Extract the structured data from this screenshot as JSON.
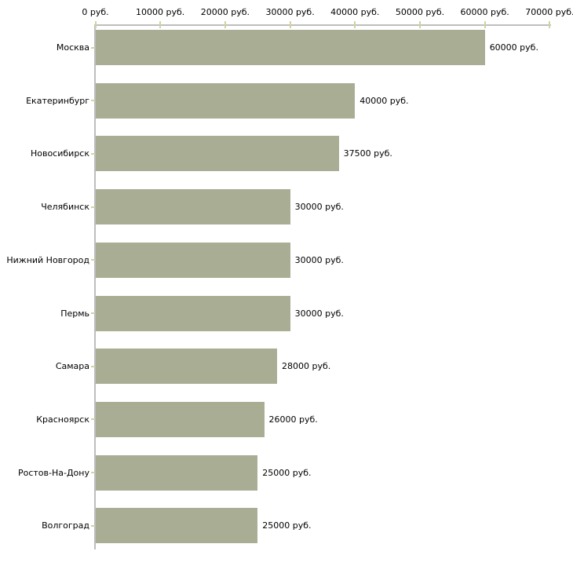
{
  "chart_data": {
    "type": "bar",
    "orientation": "horizontal",
    "title": "",
    "categories": [
      "Москва",
      "Екатеринбург",
      "Новосибирск",
      "Челябинск",
      "Нижний Новгород",
      "Пермь",
      "Самара",
      "Красноярск",
      "Ростов-На-Дону",
      "Волгоград"
    ],
    "values": [
      60000,
      40000,
      37500,
      30000,
      30000,
      30000,
      28000,
      26000,
      25000,
      25000
    ],
    "value_labels": [
      "60000 руб.",
      "40000 руб.",
      "37500 руб.",
      "30000 руб.",
      "30000 руб.",
      "30000 руб.",
      "28000 руб.",
      "26000 руб.",
      "25000 руб.",
      "25000 руб."
    ],
    "x_ticks": [
      0,
      10000,
      20000,
      30000,
      40000,
      50000,
      60000,
      70000
    ],
    "x_tick_labels": [
      "0 руб.",
      "10000 руб.",
      "20000 руб.",
      "30000 руб.",
      "40000 руб.",
      "50000 руб.",
      "60000 руб.",
      "70000 руб."
    ],
    "xlim": [
      0,
      70000
    ],
    "xlabel": "",
    "ylabel": "",
    "grid": false,
    "legend": null,
    "value_suffix": " руб.",
    "colors": {
      "bar": "#a9ad94",
      "axis": "#bdbdbd",
      "tick": "#d2d2a2",
      "text": "#000000",
      "background": "#ffffff"
    }
  }
}
